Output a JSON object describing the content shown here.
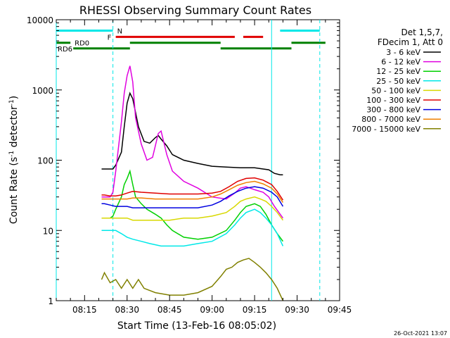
{
  "chart_data": {
    "type": "line",
    "title": "RHESSI Observing Summary Count Rates",
    "xlabel": "Start Time (13-Feb-16 08:05:02)",
    "ylabel": "Count Rate (s",
    "ylabel_sup": "-1",
    "ylabel_tail": " detector",
    "ylabel_end": ")",
    "yscale": "log",
    "xlim": [
      "08:05",
      "09:45"
    ],
    "ylim": [
      1,
      10000
    ],
    "x_tick_labels": [
      "08:15",
      "08:30",
      "08:45",
      "09:00",
      "09:15",
      "09:30",
      "09:45"
    ],
    "y_tick_labels": [
      "1",
      "10",
      "100",
      "1000",
      "10000"
    ],
    "timestamp": "26-Oct-2021 13:07",
    "legend": {
      "header": [
        "Det 1,5,7,",
        "FDecim 1, Att 0"
      ],
      "placement": "right",
      "entries": [
        {
          "label": "3 - 6 keV",
          "color": "#000000"
        },
        {
          "label": "6 - 12 keV",
          "color": "#e000e0"
        },
        {
          "label": "12 - 25 keV",
          "color": "#00d000"
        },
        {
          "label": "25 - 50 keV",
          "color": "#00e8e8"
        },
        {
          "label": "50 - 100 keV",
          "color": "#d8d800"
        },
        {
          "label": "100 - 300 keV",
          "color": "#e00000"
        },
        {
          "label": "300 - 800 keV",
          "color": "#0000e0"
        },
        {
          "label": "800 - 7000 keV",
          "color": "#f08000"
        },
        {
          "label": "7000 - 15000 keV",
          "color": "#808000"
        }
      ]
    },
    "flag_bars": [
      {
        "label": "N",
        "color": "#00e8e8",
        "segments": [
          [
            "08:05",
            "08:25"
          ],
          [
            "09:24",
            "09:38"
          ]
        ],
        "y": 7000
      },
      {
        "label": "F",
        "color": "#e00000",
        "segments": [
          [
            "08:26",
            "09:08"
          ],
          [
            "09:11",
            "09:18"
          ]
        ],
        "y": 5700
      },
      {
        "label": "RD0",
        "color": "#008000",
        "segments": [
          [
            "08:05",
            "08:10"
          ],
          [
            "08:31",
            "09:03"
          ],
          [
            "09:28",
            "09:40"
          ]
        ],
        "y": 4700
      },
      {
        "label": "RD6",
        "color": "#008000",
        "segments": [
          [
            "08:11",
            "08:31"
          ],
          [
            "09:03",
            "09:28"
          ]
        ],
        "y": 3900
      }
    ],
    "vertical_markers": [
      {
        "x": "08:05",
        "style": "solid"
      },
      {
        "x": "08:25",
        "style": "dashed"
      },
      {
        "x": "09:21",
        "style": "solid"
      },
      {
        "x": "09:38",
        "style": "dashed"
      }
    ],
    "series": [
      {
        "name": "3 - 6 keV",
        "color": "#000000",
        "x": [
          "08:21",
          "08:22",
          "08:24",
          "08:25",
          "08:26",
          "08:28",
          "08:29",
          "08:30",
          "08:31",
          "08:32",
          "08:34",
          "08:36",
          "08:38",
          "08:40",
          "08:41",
          "08:42",
          "08:44",
          "08:46",
          "08:50",
          "08:55",
          "09:00",
          "09:05",
          "09:10",
          "09:15",
          "09:18",
          "09:20",
          "09:22",
          "09:24",
          "09:25"
        ],
        "y": [
          75,
          75,
          75,
          75,
          85,
          130,
          300,
          650,
          900,
          750,
          300,
          185,
          175,
          210,
          225,
          200,
          160,
          120,
          100,
          90,
          82,
          80,
          78,
          78,
          75,
          73,
          65,
          62,
          62
        ]
      },
      {
        "name": "6 - 12 keV",
        "color": "#e000e0",
        "x": [
          "08:21",
          "08:22",
          "08:24",
          "08:25",
          "08:26",
          "08:28",
          "08:29",
          "08:30",
          "08:31",
          "08:32",
          "08:33",
          "08:35",
          "08:37",
          "08:39",
          "08:41",
          "08:42",
          "08:44",
          "08:46",
          "08:50",
          "08:55",
          "09:00",
          "09:05",
          "09:08",
          "09:10",
          "09:12",
          "09:15",
          "09:18",
          "09:20",
          "09:22",
          "09:25"
        ],
        "y": [
          30,
          30,
          30,
          35,
          70,
          350,
          900,
          1600,
          2200,
          1300,
          400,
          170,
          100,
          110,
          240,
          260,
          120,
          70,
          50,
          40,
          30,
          28,
          34,
          40,
          42,
          38,
          35,
          30,
          22,
          15
        ]
      },
      {
        "name": "12 - 25 keV",
        "color": "#00d000",
        "x": [
          "08:21",
          "08:22",
          "08:24",
          "08:25",
          "08:26",
          "08:28",
          "08:29",
          "08:30",
          "08:31",
          "08:32",
          "08:33",
          "08:35",
          "08:37",
          "08:40",
          "08:42",
          "08:44",
          "08:46",
          "08:50",
          "08:55",
          "09:00",
          "09:05",
          "09:08",
          "09:10",
          "09:12",
          "09:15",
          "09:17",
          "09:19",
          "09:21",
          "09:23",
          "09:25"
        ],
        "y": [
          15,
          15,
          15,
          16,
          20,
          30,
          45,
          55,
          70,
          45,
          30,
          24,
          20,
          17,
          15,
          12,
          10,
          8,
          7.5,
          8,
          10,
          14,
          18,
          22,
          24,
          22,
          17,
          12,
          9,
          7
        ]
      },
      {
        "name": "25 - 50 keV",
        "color": "#00e8e8",
        "x": [
          "08:21",
          "08:22",
          "08:24",
          "08:26",
          "08:28",
          "08:30",
          "08:32",
          "08:35",
          "08:38",
          "08:42",
          "08:46",
          "08:50",
          "08:55",
          "09:00",
          "09:05",
          "09:08",
          "09:10",
          "09:12",
          "09:15",
          "09:17",
          "09:19",
          "09:21",
          "09:23",
          "09:25"
        ],
        "y": [
          10,
          10,
          10,
          10,
          9,
          8,
          7.5,
          7,
          6.5,
          6,
          6,
          6,
          6.5,
          7,
          9,
          12,
          15,
          18,
          20,
          18,
          15,
          12,
          9,
          6
        ]
      },
      {
        "name": "50 - 100 keV",
        "color": "#d8d800",
        "x": [
          "08:21",
          "08:22",
          "08:24",
          "08:26",
          "08:28",
          "08:30",
          "08:32",
          "08:35",
          "08:40",
          "08:45",
          "08:50",
          "08:55",
          "09:00",
          "09:05",
          "09:08",
          "09:10",
          "09:12",
          "09:15",
          "09:17",
          "09:19",
          "09:21",
          "09:23",
          "09:25"
        ],
        "y": [
          15,
          15,
          15,
          15,
          15,
          15,
          14,
          14,
          14,
          14,
          15,
          15,
          16,
          18,
          22,
          26,
          28,
          30,
          28,
          26,
          22,
          18,
          14
        ]
      },
      {
        "name": "100 - 300 keV",
        "color": "#e00000",
        "x": [
          "08:21",
          "08:22",
          "08:24",
          "08:26",
          "08:28",
          "08:30",
          "08:32",
          "08:35",
          "08:40",
          "08:45",
          "08:50",
          "08:55",
          "09:00",
          "09:03",
          "09:06",
          "09:09",
          "09:12",
          "09:15",
          "09:18",
          "09:21",
          "09:23",
          "09:25"
        ],
        "y": [
          32,
          32,
          31,
          31,
          32,
          34,
          36,
          35,
          34,
          33,
          33,
          33,
          34,
          36,
          42,
          50,
          55,
          56,
          52,
          45,
          36,
          27
        ]
      },
      {
        "name": "300 - 800 keV",
        "color": "#0000e0",
        "x": [
          "08:21",
          "08:22",
          "08:24",
          "08:26",
          "08:28",
          "08:30",
          "08:32",
          "08:35",
          "08:40",
          "08:45",
          "08:50",
          "08:55",
          "09:00",
          "09:03",
          "09:06",
          "09:09",
          "09:12",
          "09:15",
          "09:18",
          "09:21",
          "09:23",
          "09:25"
        ],
        "y": [
          24,
          24,
          23,
          22,
          22,
          22,
          21,
          21,
          21,
          21,
          21,
          21,
          23,
          26,
          31,
          36,
          40,
          42,
          40,
          35,
          30,
          22
        ]
      },
      {
        "name": "800 - 7000 keV",
        "color": "#f08000",
        "x": [
          "08:21",
          "08:22",
          "08:24",
          "08:26",
          "08:28",
          "08:30",
          "08:32",
          "08:35",
          "08:40",
          "08:45",
          "08:50",
          "08:55",
          "09:00",
          "09:03",
          "09:06",
          "09:09",
          "09:12",
          "09:15",
          "09:18",
          "09:21",
          "09:23",
          "09:25"
        ],
        "y": [
          28,
          28,
          28,
          28,
          28,
          28,
          29,
          29,
          28,
          28,
          28,
          28,
          30,
          33,
          38,
          44,
          48,
          50,
          46,
          40,
          33,
          25
        ]
      },
      {
        "name": "7000 - 15000 keV",
        "color": "#808000",
        "x": [
          "08:21",
          "08:22",
          "08:24",
          "08:26",
          "08:28",
          "08:30",
          "08:32",
          "08:34",
          "08:36",
          "08:40",
          "08:45",
          "08:50",
          "08:55",
          "09:00",
          "09:03",
          "09:05",
          "09:07",
          "09:09",
          "09:11",
          "09:13",
          "09:15",
          "09:17",
          "09:19",
          "09:21",
          "09:23",
          "09:25"
        ],
        "y": [
          2,
          2.5,
          1.8,
          2,
          1.5,
          2,
          1.5,
          2,
          1.5,
          1.3,
          1.2,
          1.2,
          1.3,
          1.6,
          2.2,
          2.8,
          3,
          3.5,
          3.8,
          4,
          3.5,
          3,
          2.5,
          2,
          1.5,
          1
        ]
      }
    ]
  }
}
